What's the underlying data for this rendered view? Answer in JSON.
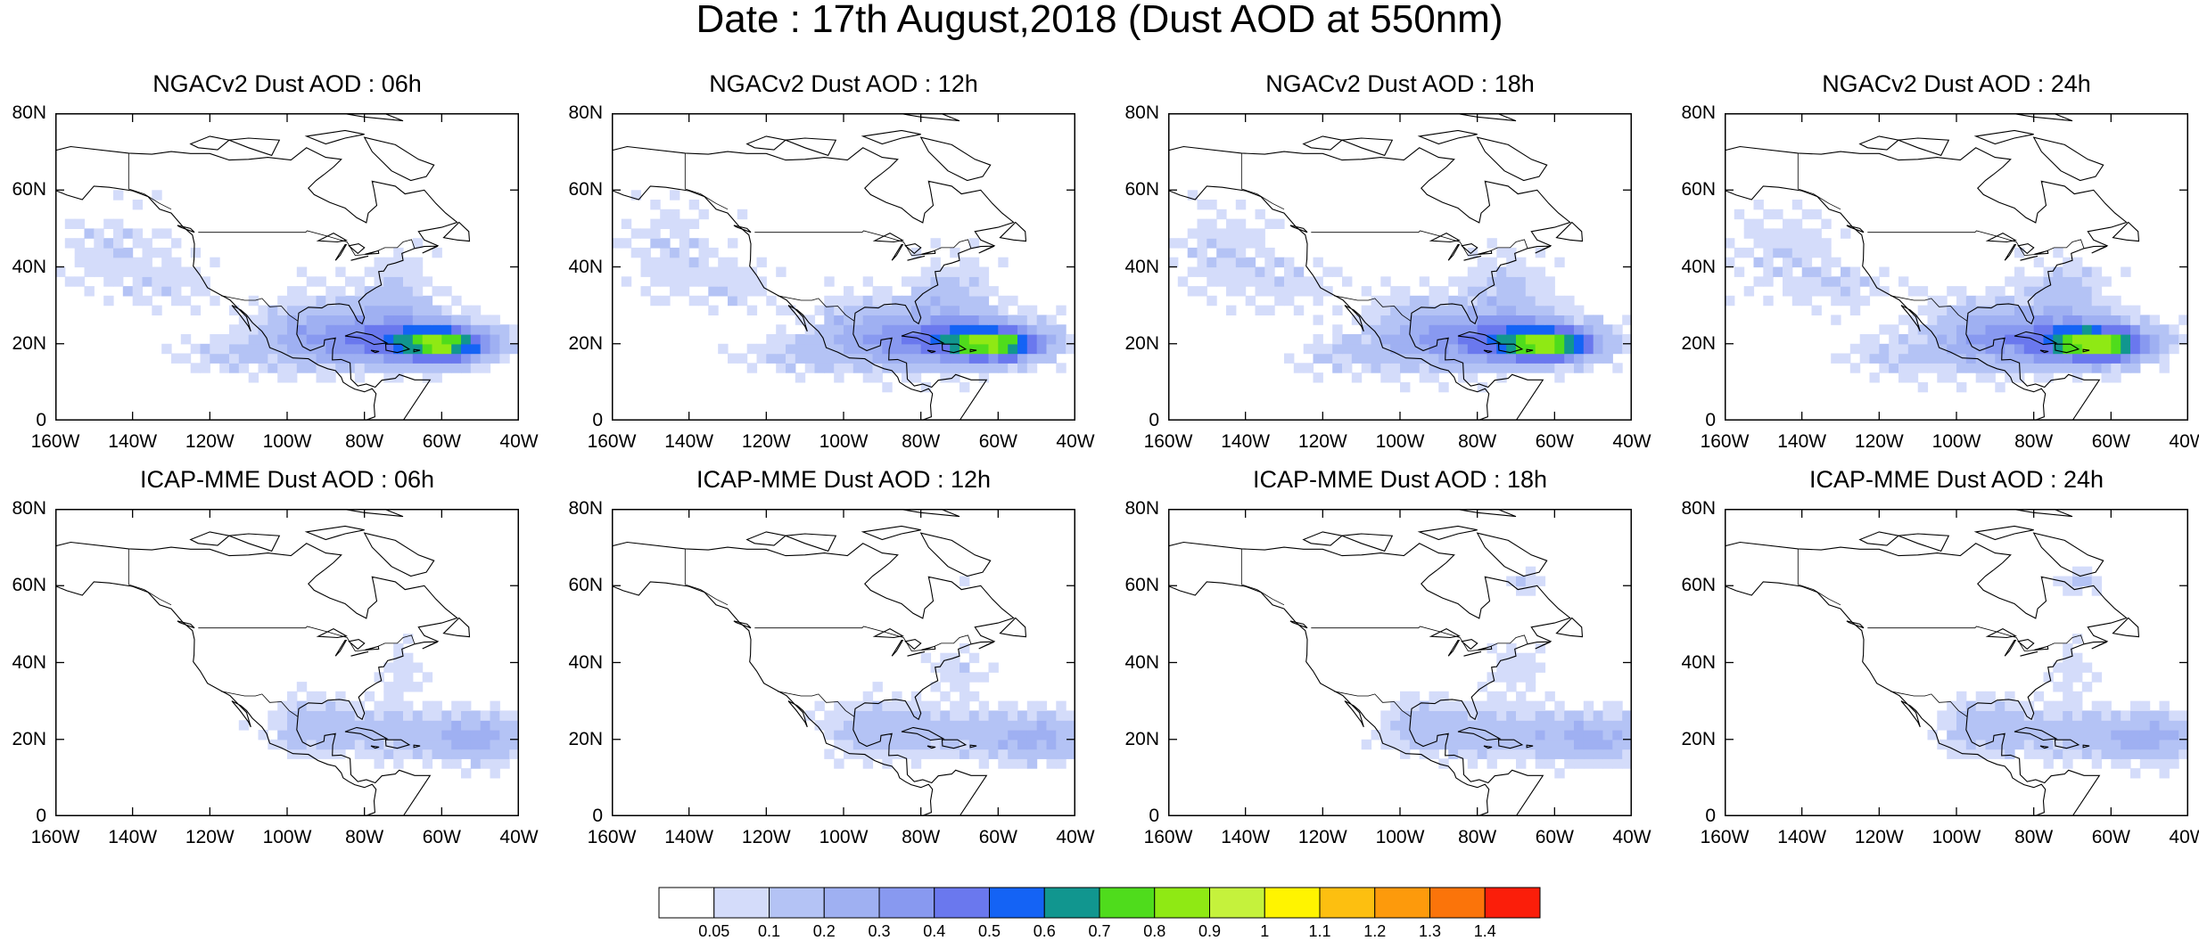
{
  "title": "Date : 17th August,2018 (Dust AOD at 550nm)",
  "y_ticks": [
    "80N",
    "60N",
    "40N",
    "20N",
    "0"
  ],
  "x_ticks": [
    "160W",
    "140W",
    "120W",
    "100W",
    "80W",
    "60W",
    "40W"
  ],
  "panels": [
    {
      "title": "NGACv2 Dust AOD : 06h",
      "model": "NGACv2",
      "lead": "06h"
    },
    {
      "title": "NGACv2 Dust AOD : 12h",
      "model": "NGACv2",
      "lead": "12h"
    },
    {
      "title": "NGACv2 Dust AOD : 18h",
      "model": "NGACv2",
      "lead": "18h"
    },
    {
      "title": "NGACv2 Dust AOD : 24h",
      "model": "NGACv2",
      "lead": "24h"
    },
    {
      "title": "ICAP-MME Dust AOD : 06h",
      "model": "ICAP-MME",
      "lead": "06h"
    },
    {
      "title": "ICAP-MME Dust AOD : 12h",
      "model": "ICAP-MME",
      "lead": "12h"
    },
    {
      "title": "ICAP-MME Dust AOD : 18h",
      "model": "ICAP-MME",
      "lead": "18h"
    },
    {
      "title": "ICAP-MME Dust AOD : 24h",
      "model": "ICAP-MME",
      "lead": "24h"
    }
  ],
  "map_extent": {
    "lon": [
      -160,
      -40
    ],
    "lat": [
      0,
      80
    ]
  },
  "colorbar": {
    "labels": [
      "0.05",
      "0.1",
      "0.2",
      "0.3",
      "0.4",
      "0.5",
      "0.6",
      "0.7",
      "0.8",
      "0.9",
      "1",
      "1.1",
      "1.2",
      "1.3",
      "1.4"
    ],
    "colors": [
      "#ffffff",
      "#d4dcfa",
      "#b4c3f5",
      "#9fb0f2",
      "#8899f0",
      "#6a78ee",
      "#1463f5",
      "#11968f",
      "#4fdc1c",
      "#8fe914",
      "#c5f23c",
      "#fff400",
      "#fdbf10",
      "#fd9a0c",
      "#fb740a",
      "#fb1e0a"
    ]
  },
  "chart_data": {
    "type": "heatmap",
    "title": "Date : 17th August,2018 (Dust AOD at 550nm)",
    "variable": "Dust AOD at 550nm",
    "date": "17th August,2018",
    "panels": [
      {
        "title": "NGACv2 Dust AOD : 06h",
        "max_aod_approx": 0.65,
        "plume_core": {
          "lon": -60,
          "lat": 20
        }
      },
      {
        "title": "NGACv2 Dust AOD : 12h",
        "max_aod_approx": 0.65,
        "plume_core": {
          "lon": -58,
          "lat": 20
        }
      },
      {
        "title": "NGACv2 Dust AOD : 18h",
        "max_aod_approx": 0.62,
        "plume_core": {
          "lon": -60,
          "lat": 20
        }
      },
      {
        "title": "NGACv2 Dust AOD : 24h",
        "max_aod_approx": 0.6,
        "plume_core": {
          "lon": -62,
          "lat": 20
        }
      },
      {
        "title": "ICAP-MME Dust AOD : 06h",
        "max_aod_approx": 0.25,
        "plume_core": {
          "lon": -45,
          "lat": 20
        }
      },
      {
        "title": "ICAP-MME Dust AOD : 12h",
        "max_aod_approx": 0.2,
        "plume_core": {
          "lon": -50,
          "lat": 20
        }
      },
      {
        "title": "ICAP-MME Dust AOD : 18h",
        "max_aod_approx": 0.2,
        "plume_core": {
          "lon": -52,
          "lat": 20
        }
      },
      {
        "title": "ICAP-MME Dust AOD : 24h",
        "max_aod_approx": 0.2,
        "plume_core": {
          "lon": -52,
          "lat": 22
        }
      }
    ],
    "xlim": [
      -160,
      -40
    ],
    "ylim": [
      0,
      80
    ],
    "colorbar_levels": [
      0.05,
      0.1,
      0.2,
      0.3,
      0.4,
      0.5,
      0.6,
      0.7,
      0.8,
      0.9,
      1,
      1.1,
      1.2,
      1.3,
      1.4
    ]
  }
}
